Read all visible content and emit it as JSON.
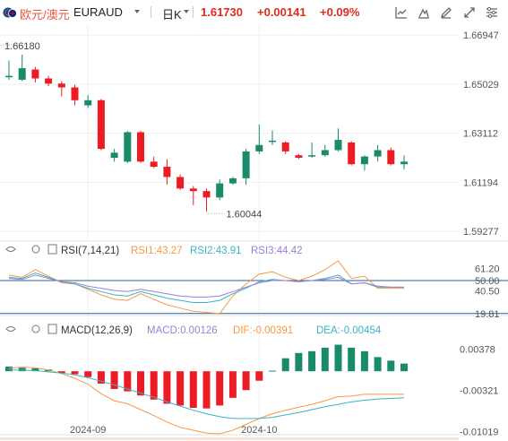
{
  "header": {
    "pair_name": "欧元/澳元",
    "pair_code": "EURAUD",
    "period": "日K",
    "price": "1.61730",
    "change": "+0.00141",
    "change_pct": "+0.09%",
    "toolbar_icons": [
      "indicator-icon",
      "draw-icon",
      "pen-icon",
      "fullscreen-icon",
      "settings-icon"
    ]
  },
  "colors": {
    "up": "#1a8b6a",
    "down": "#ed1c24",
    "ma1": "#f59a47",
    "ma2": "#3ab3c7",
    "ma3": "#9b7fd4"
  },
  "chart_data": [
    {
      "type": "candlestick",
      "title": "EURAUD 日K",
      "y_ticks": [
        "1.66947",
        "1.65029",
        "1.63112",
        "1.61194",
        "1.59277"
      ],
      "ylim": [
        1.5928,
        1.6695
      ],
      "x_ticks": [
        {
          "label": "2024-09",
          "index": 6
        },
        {
          "label": "2024-10",
          "index": 19
        }
      ],
      "annotations": {
        "high": "1.66180",
        "low": "1.60044"
      },
      "candles": [
        {
          "o": 1.653,
          "h": 1.6595,
          "l": 1.652,
          "c": 1.6535
        },
        {
          "o": 1.652,
          "h": 1.6618,
          "l": 1.6515,
          "c": 1.6565
        },
        {
          "o": 1.656,
          "h": 1.657,
          "l": 1.651,
          "c": 1.6525
        },
        {
          "o": 1.6525,
          "h": 1.6535,
          "l": 1.6495,
          "c": 1.6505
        },
        {
          "o": 1.6505,
          "h": 1.6515,
          "l": 1.6455,
          "c": 1.649
        },
        {
          "o": 1.649,
          "h": 1.65,
          "l": 1.642,
          "c": 1.644
        },
        {
          "o": 1.642,
          "h": 1.646,
          "l": 1.641,
          "c": 1.644
        },
        {
          "o": 1.644,
          "h": 1.6445,
          "l": 1.6245,
          "c": 1.625
        },
        {
          "o": 1.6215,
          "h": 1.625,
          "l": 1.62,
          "c": 1.6235
        },
        {
          "o": 1.62,
          "h": 1.632,
          "l": 1.6195,
          "c": 1.6315
        },
        {
          "o": 1.6315,
          "h": 1.632,
          "l": 1.6195,
          "c": 1.62
        },
        {
          "o": 1.62,
          "h": 1.622,
          "l": 1.6175,
          "c": 1.618
        },
        {
          "o": 1.618,
          "h": 1.621,
          "l": 1.611,
          "c": 1.614
        },
        {
          "o": 1.614,
          "h": 1.615,
          "l": 1.609,
          "c": 1.6095
        },
        {
          "o": 1.6095,
          "h": 1.6105,
          "l": 1.603,
          "c": 1.6085
        },
        {
          "o": 1.6085,
          "h": 1.6095,
          "l": 1.6004,
          "c": 1.606
        },
        {
          "o": 1.606,
          "h": 1.613,
          "l": 1.605,
          "c": 1.6115
        },
        {
          "o": 1.6115,
          "h": 1.614,
          "l": 1.611,
          "c": 1.6135
        },
        {
          "o": 1.6135,
          "h": 1.625,
          "l": 1.611,
          "c": 1.624
        },
        {
          "o": 1.624,
          "h": 1.6345,
          "l": 1.623,
          "c": 1.6265
        },
        {
          "o": 1.6282,
          "h": 1.6322,
          "l": 1.6265,
          "c": 1.6282
        },
        {
          "o": 1.6275,
          "h": 1.628,
          "l": 1.623,
          "c": 1.624
        },
        {
          "o": 1.6225,
          "h": 1.623,
          "l": 1.621,
          "c": 1.6215
        },
        {
          "o": 1.622,
          "h": 1.6275,
          "l": 1.6215,
          "c": 1.6225
        },
        {
          "o": 1.6225,
          "h": 1.6265,
          "l": 1.622,
          "c": 1.6245
        },
        {
          "o": 1.6245,
          "h": 1.633,
          "l": 1.624,
          "c": 1.6285
        },
        {
          "o": 1.6275,
          "h": 1.628,
          "l": 1.6185,
          "c": 1.619
        },
        {
          "o": 1.619,
          "h": 1.6225,
          "l": 1.6165,
          "c": 1.622
        },
        {
          "o": 1.622,
          "h": 1.6265,
          "l": 1.62,
          "c": 1.6245
        },
        {
          "o": 1.6245,
          "h": 1.6255,
          "l": 1.6185,
          "c": 1.619
        },
        {
          "o": 1.619,
          "h": 1.6225,
          "l": 1.617,
          "c": 1.62
        }
      ]
    },
    {
      "type": "line",
      "title": "RSI(7,14,21)",
      "legend": [
        {
          "name": "RSI1",
          "value": "43.27",
          "color": "#f59a47"
        },
        {
          "name": "RSI2",
          "value": "43.91",
          "color": "#3ab3c7"
        },
        {
          "name": "RSI3",
          "value": "44.42",
          "color": "#9b7fd4"
        }
      ],
      "y_ticks": [
        "61.20",
        "50.00",
        "40.50",
        "19.81"
      ],
      "ylim": [
        19,
        68
      ],
      "reference_lines": [
        50,
        20
      ],
      "series": [
        {
          "name": "RSI1",
          "color": "#f59a47",
          "values": [
            55,
            53,
            60,
            54,
            48,
            47,
            42,
            37,
            33,
            32,
            38,
            33,
            28,
            25,
            22,
            21,
            20,
            36,
            47,
            56,
            58,
            53,
            50,
            54,
            60,
            68,
            52,
            54,
            43,
            43,
            43
          ]
        },
        {
          "name": "RSI2",
          "color": "#3ab3c7",
          "values": [
            53,
            52,
            57,
            53,
            49,
            47,
            43,
            40,
            37,
            36,
            40,
            37,
            34,
            32,
            30,
            30,
            32,
            38,
            43,
            49,
            51,
            50,
            49,
            50,
            52,
            55,
            47,
            48,
            44,
            44,
            44
          ]
        },
        {
          "name": "RSI3",
          "color": "#9b7fd4",
          "values": [
            52,
            51,
            55,
            52,
            49,
            48,
            45,
            43,
            41,
            40,
            42,
            40,
            38,
            36,
            35,
            35,
            36,
            40,
            44,
            48,
            50,
            50,
            49,
            50,
            51,
            53,
            47,
            48,
            45,
            44,
            44
          ]
        }
      ]
    },
    {
      "type": "bar",
      "title": "MACD(12,26,9)",
      "legend": [
        {
          "name": "MACD",
          "value": "0.00126",
          "color": "#9b7fd4"
        },
        {
          "name": "DIF",
          "value": "-0.00391",
          "color": "#f59a47"
        },
        {
          "name": "DEA",
          "value": "-0.00454",
          "color": "#3ab3c7"
        }
      ],
      "y_ticks": [
        "0.00378",
        "-0.00321",
        "-0.01019"
      ],
      "ylim": [
        -0.0106,
        0.0058
      ],
      "series": [
        {
          "name": "MACD",
          "values": [
            0.0008,
            0.0006,
            0.0005,
            0.0003,
            -0.0003,
            -0.0005,
            -0.001,
            -0.0021,
            -0.003,
            -0.0034,
            -0.0041,
            -0.0048,
            -0.0055,
            -0.0058,
            -0.0062,
            -0.0063,
            -0.0058,
            -0.0045,
            -0.0032,
            -0.0016,
            0.0001,
            0.0022,
            0.0031,
            0.0034,
            0.004,
            0.0045,
            0.004,
            0.0034,
            0.0024,
            0.0018,
            0.0013
          ]
        },
        {
          "name": "DIF",
          "values": [
            0.0005,
            0.0007,
            0.0006,
            0.0002,
            -0.0004,
            -0.0012,
            -0.0022,
            -0.0038,
            -0.005,
            -0.0055,
            -0.0065,
            -0.0075,
            -0.0086,
            -0.0095,
            -0.01,
            -0.0105,
            -0.0106,
            -0.01,
            -0.009,
            -0.008,
            -0.0072,
            -0.0066,
            -0.0061,
            -0.0056,
            -0.005,
            -0.0043,
            -0.0042,
            -0.0039,
            -0.0039,
            -0.0039,
            -0.0039
          ]
        },
        {
          "name": "DEA",
          "values": [
            0.0002,
            0.0002,
            0.0001,
            -0.0001,
            -0.0003,
            -0.0006,
            -0.0011,
            -0.0017,
            -0.0023,
            -0.003,
            -0.0037,
            -0.0044,
            -0.0052,
            -0.0059,
            -0.0066,
            -0.0072,
            -0.0077,
            -0.008,
            -0.008,
            -0.008,
            -0.0078,
            -0.0074,
            -0.007,
            -0.0065,
            -0.006,
            -0.0056,
            -0.0052,
            -0.0049,
            -0.0047,
            -0.0046,
            -0.0045
          ]
        }
      ]
    }
  ]
}
